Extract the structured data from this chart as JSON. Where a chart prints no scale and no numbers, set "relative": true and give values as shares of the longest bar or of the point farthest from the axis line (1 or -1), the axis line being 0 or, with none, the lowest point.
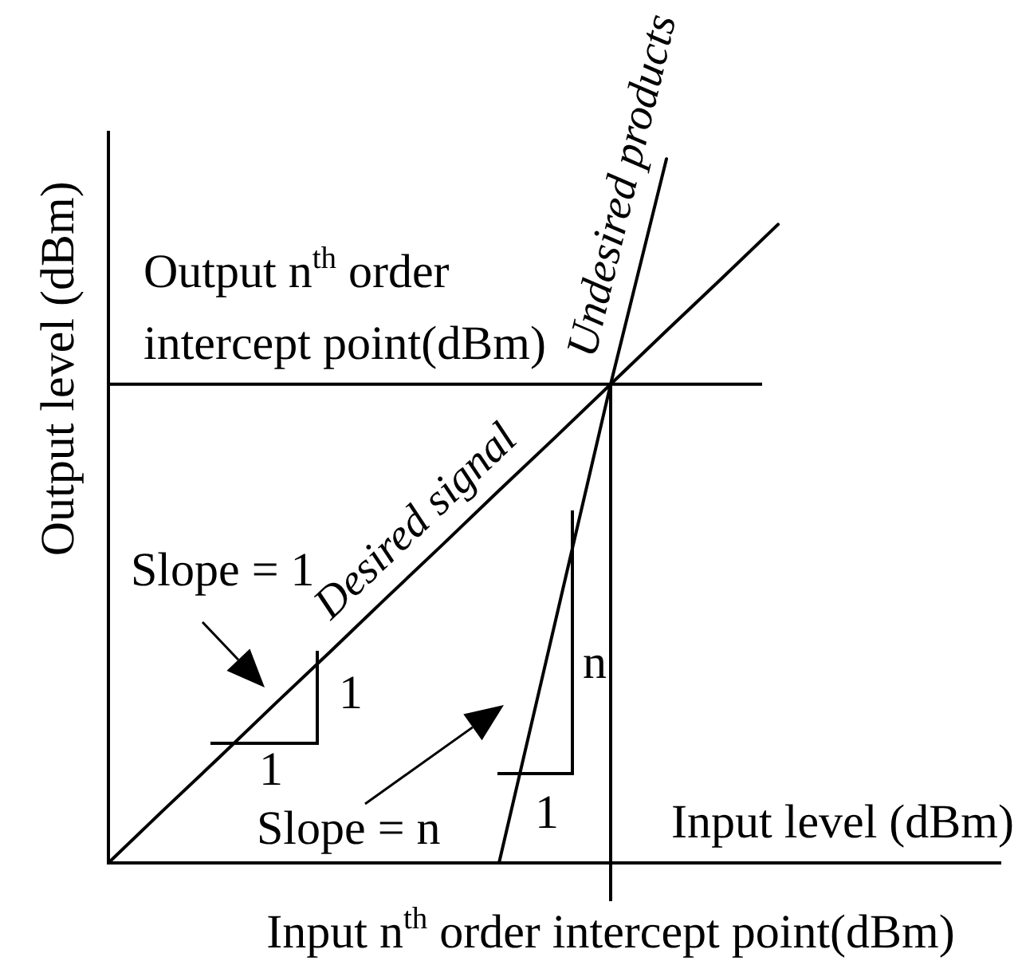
{
  "chart_data": {
    "type": "line",
    "relative": true,
    "categories": [
      null,
      null,
      null,
      null,
      null,
      null,
      null,
      null,
      null,
      null,
      null,
      null,
      null,
      null,
      null,
      null,
      null
    ],
    "series": [
      {
        "name": "Desired signal",
        "color": "#000000",
        "values": [
          0,
          0.076,
          0.151,
          0.227,
          0.302,
          0.378,
          0.453,
          0.529,
          0.604,
          0.68,
          0.756,
          0.831,
          0.907,
          null,
          null,
          null,
          null
        ]
      },
      {
        "name": "Undesired products",
        "color": "#000000",
        "values": [
          null,
          null,
          null,
          null,
          null,
          null,
          null,
          0,
          0.34,
          0.68,
          1,
          null,
          null,
          null,
          null,
          null,
          null
        ]
      }
    ],
    "xlabel": "Input level (dBm)",
    "ylabel": "Output level (dBm)",
    "ref_lines": [
      {
        "axis": "y",
        "value": 0.68,
        "label": "Output n$^{th}$ order intercept point(dBm)"
      }
    ],
    "annotations": [
      "Slope = 1",
      "1",
      "1",
      "Slope = n",
      "n",
      "1",
      "Input n$^{th}$ order intercept point(dBm)"
    ]
  }
}
